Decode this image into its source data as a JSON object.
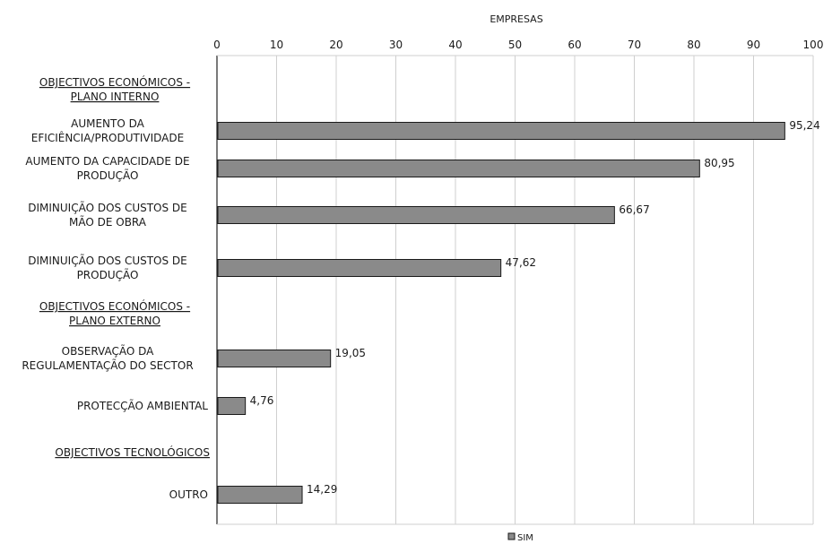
{
  "chart_data": {
    "type": "bar",
    "orientation": "horizontal",
    "xlabel": "EMPRESAS",
    "xlim": [
      0,
      100
    ],
    "xticks": [
      0,
      10,
      20,
      30,
      40,
      50,
      60,
      70,
      80,
      90,
      100
    ],
    "grid": true,
    "legend": {
      "position": "bottom",
      "entries": [
        "SIM"
      ]
    },
    "bar_color": "#8a8a8a",
    "categories": [
      {
        "label": [
          "OBJECTIVOS ECONÓMICOS -",
          "PLANO INTERNO"
        ],
        "header": true,
        "value": null,
        "value_label": null
      },
      {
        "label": [
          "AUMENTO DA",
          "EFICIÊNCIA/PRODUTIVIDADE"
        ],
        "header": false,
        "value": 95.24,
        "value_label": "95,24"
      },
      {
        "label": [
          "AUMENTO DA CAPACIDADE DE",
          "PRODUÇÃO"
        ],
        "header": false,
        "value": 80.95,
        "value_label": "80,95"
      },
      {
        "label": [
          "DIMINUIÇÃO DOS CUSTOS DE",
          "MÃO DE OBRA"
        ],
        "header": false,
        "value": 66.67,
        "value_label": "66,67"
      },
      {
        "label": [
          "DIMINUIÇÃO DOS CUSTOS DE",
          "PRODUÇÃO"
        ],
        "header": false,
        "value": 47.62,
        "value_label": "47,62"
      },
      {
        "label": [
          "OBJECTIVOS ECONÓMICOS -",
          "PLANO EXTERNO"
        ],
        "header": true,
        "value": null,
        "value_label": null
      },
      {
        "label": [
          "OBSERVAÇÃO DA",
          "REGULAMENTAÇÃO DO SECTOR"
        ],
        "header": false,
        "value": 19.05,
        "value_label": "19,05"
      },
      {
        "label": [
          "PROTECÇÃO AMBIENTAL"
        ],
        "header": false,
        "value": 4.76,
        "value_label": "4,76"
      },
      {
        "label": [
          "OBJECTIVOS TECNOLÓGICOS"
        ],
        "header": true,
        "value": null,
        "value_label": null
      },
      {
        "label": [
          "OUTRO"
        ],
        "header": false,
        "value": 14.29,
        "value_label": "14,29"
      }
    ]
  }
}
